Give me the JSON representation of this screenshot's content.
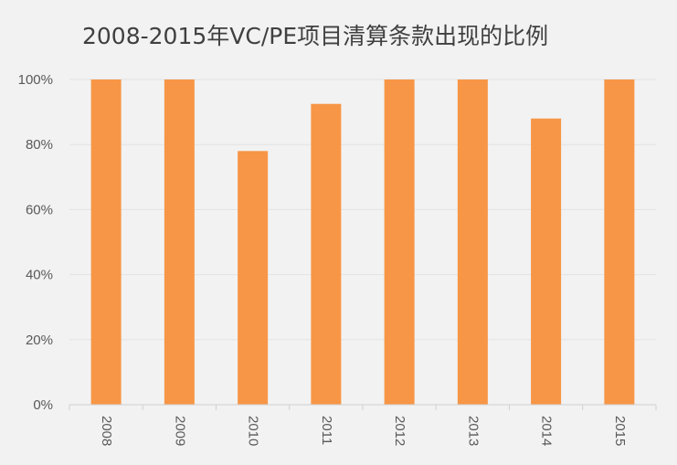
{
  "chart_data": {
    "type": "bar",
    "title": "2008-2015年VC/PE项目清算条款出现的比例",
    "categories": [
      "2008",
      "2009",
      "2010",
      "2011",
      "2012",
      "2013",
      "2014",
      "2015"
    ],
    "values": [
      100,
      100,
      78,
      92.5,
      100,
      100,
      88,
      100
    ],
    "ylim": [
      0,
      100
    ],
    "yticks": [
      "0%",
      "20%",
      "40%",
      "60%",
      "80%",
      "100%"
    ],
    "xlabel": "",
    "ylabel": "",
    "grid": true,
    "bar_color": "#f79646",
    "grid_color": "#e3e3e3",
    "axis_color": "#d0d0d0"
  }
}
